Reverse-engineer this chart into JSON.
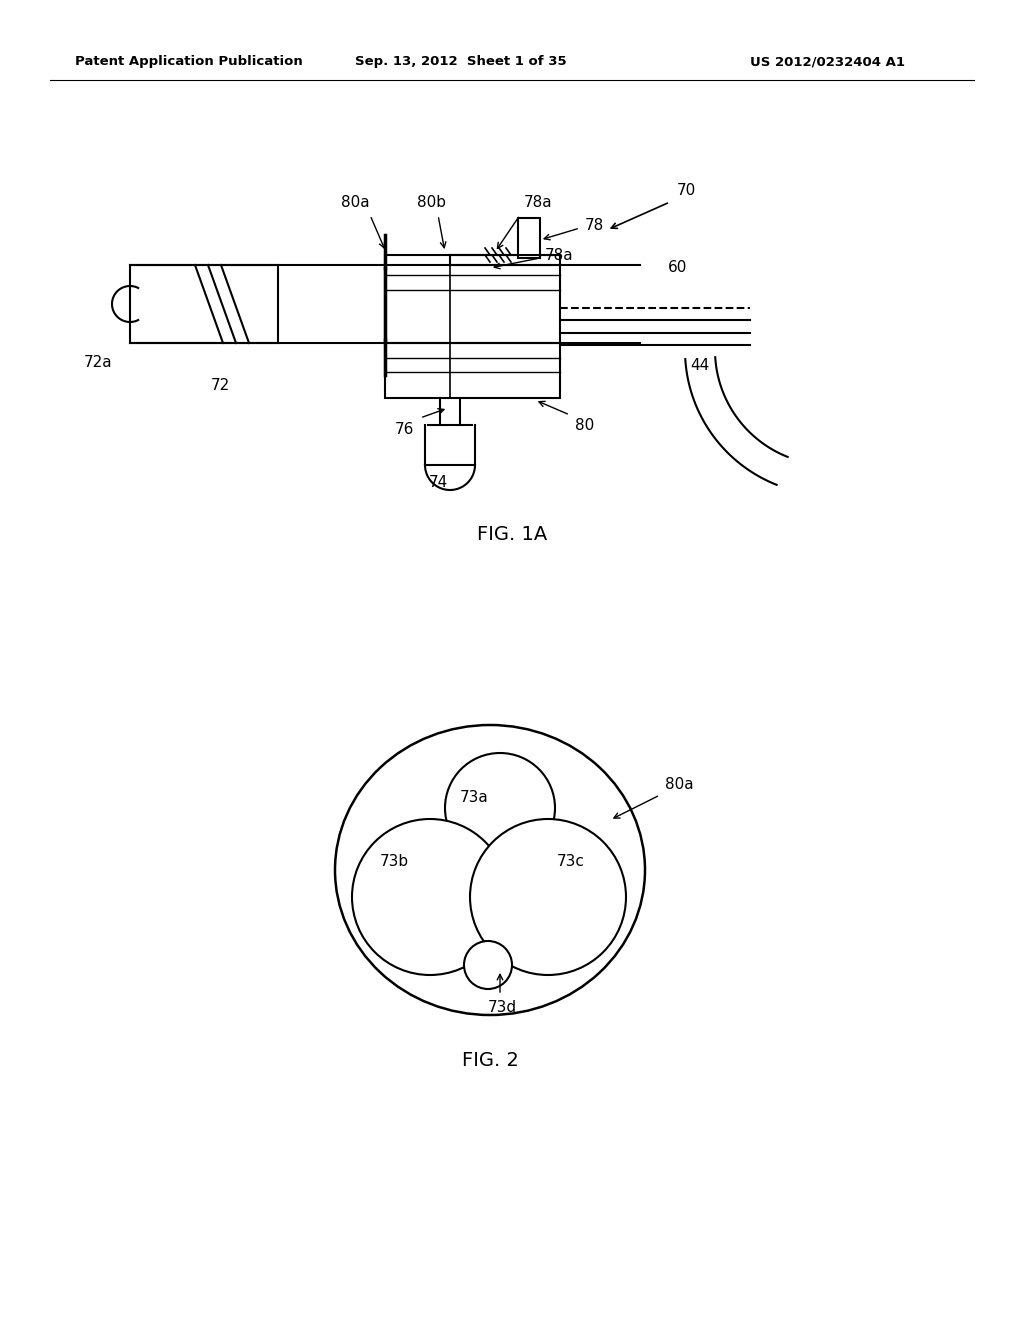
{
  "bg_color": "#ffffff",
  "header_text": "Patent Application Publication",
  "header_date": "Sep. 13, 2012  Sheet 1 of 35",
  "header_patent": "US 2012/0232404 A1",
  "fig1a_label": "FIG. 1A",
  "fig2_label": "FIG. 2",
  "line_color": "#000000",
  "line_width": 1.5
}
